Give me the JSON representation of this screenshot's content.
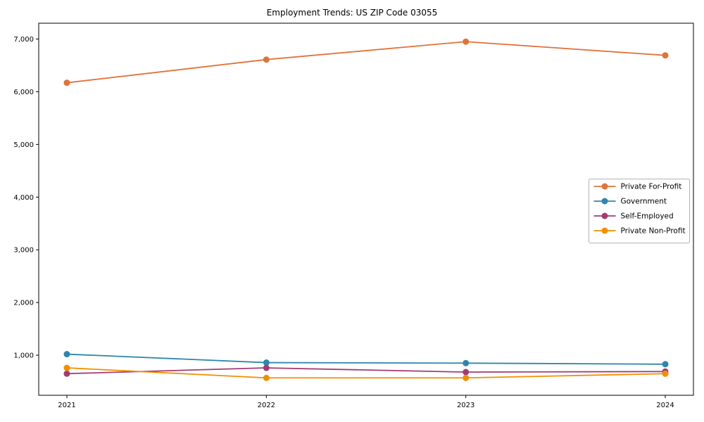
{
  "title": "Employment Trends: US ZIP Code 03055",
  "chart_data": {
    "type": "line",
    "title": "Employment Trends: US ZIP Code 03055",
    "categories": [
      "2021",
      "2022",
      "2023",
      "2024"
    ],
    "series": [
      {
        "name": "Private For-Profit",
        "color": "#E0733C",
        "values": [
          6170,
          6610,
          6950,
          6690
        ]
      },
      {
        "name": "Government",
        "color": "#2E86AB",
        "values": [
          1020,
          860,
          850,
          830
        ]
      },
      {
        "name": "Self-Employed",
        "color": "#A23B72",
        "values": [
          650,
          760,
          680,
          690
        ]
      },
      {
        "name": "Private Non-Profit",
        "color": "#F18F01",
        "values": [
          760,
          570,
          570,
          650
        ]
      }
    ],
    "xlabel": "",
    "ylabel": "",
    "ylim": [
      240,
      7300
    ],
    "yticks": [
      1000,
      2000,
      3000,
      4000,
      5000,
      6000,
      7000
    ],
    "ytick_labels": [
      "1,000",
      "2,000",
      "3,000",
      "4,000",
      "5,000",
      "6,000",
      "7,000"
    ],
    "grid": false,
    "legend_position": "center-right",
    "legend_border_color": "#b3b3b3",
    "axis_color": "#000000",
    "marker": "circle"
  }
}
